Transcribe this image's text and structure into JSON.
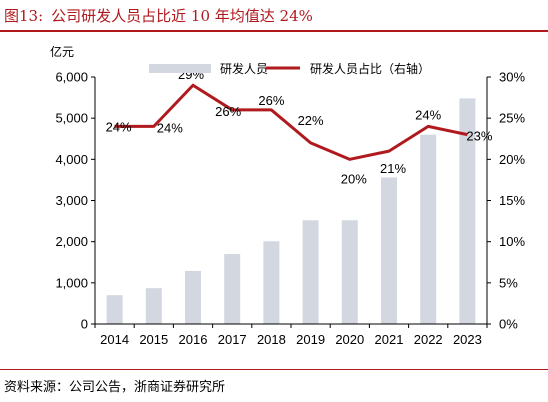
{
  "figure": {
    "number": "图13:",
    "title": "公司研发人员占比近 10 年均值达 24%",
    "source": "资料来源：公司公告，浙商证券研究所"
  },
  "chart_data": {
    "type": "bar+line",
    "categories": [
      "2014",
      "2015",
      "2016",
      "2017",
      "2018",
      "2019",
      "2020",
      "2021",
      "2022",
      "2023"
    ],
    "series": [
      {
        "name": "研发人员",
        "type": "bar",
        "axis": "left",
        "color": "#d3d7df",
        "values": [
          700,
          870,
          1290,
          1700,
          2010,
          2520,
          2520,
          3560,
          4600,
          5480
        ]
      },
      {
        "name": "研发人员占比（右轴）",
        "type": "line",
        "axis": "right",
        "color": "#b0191e",
        "values": [
          24,
          24,
          29,
          26,
          26,
          22,
          20,
          21,
          24,
          23
        ],
        "data_labels": [
          "24%",
          "24%",
          "29%",
          "26%",
          "26%",
          "22%",
          "20%",
          "21%",
          "24%",
          "23%"
        ]
      }
    ],
    "left_axis": {
      "unit_label": "亿元",
      "ylim": [
        0,
        6000
      ],
      "ticks": [
        "0",
        "1,000",
        "2,000",
        "3,000",
        "4,000",
        "5,000",
        "6,000"
      ]
    },
    "right_axis": {
      "ylim": [
        0,
        30
      ],
      "ticks": [
        "0%",
        "5%",
        "10%",
        "15%",
        "20%",
        "25%",
        "30%"
      ]
    },
    "legend_position": "top",
    "grid": false
  }
}
